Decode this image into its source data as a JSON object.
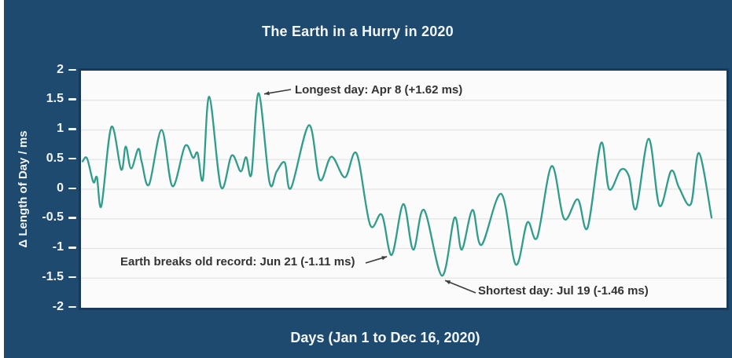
{
  "title": "The Earth in a Hurry in 2020",
  "colors": {
    "panel_background": "#1f4a6f",
    "plot_background": "#fbfbfb",
    "plot_border": "#17395c",
    "gridline": "#e4e4e4",
    "line": "#2f9d8a",
    "annotation_text": "#333333",
    "annotation_arrow": "#3b3b3b",
    "axis_text": "#f3f6f9"
  },
  "chart_data": {
    "type": "line",
    "title": "The Earth in a Hurry in 2020",
    "xlabel": "Days (Jan 1 to Dec 16, 2020)",
    "ylabel": "Δ Length of Day / ms",
    "x_range_days": [
      0,
      350
    ],
    "ylim": [
      -2,
      2
    ],
    "grid": true,
    "legend": "none",
    "yticks": [
      {
        "label": "2",
        "value": 2
      },
      {
        "label": "1.5",
        "value": 1.5
      },
      {
        "label": "1",
        "value": 1
      },
      {
        "label": "0.5",
        "value": 0.5
      },
      {
        "label": "0",
        "value": 0
      },
      {
        "label": "-0.5",
        "value": -0.5
      },
      {
        "label": "-1",
        "value": -1
      },
      {
        "label": "-1.5",
        "value": -1.5
      },
      {
        "label": "-2",
        "value": -2
      }
    ],
    "series": [
      {
        "name": "delta-length-of-day-ms",
        "points": [
          [
            0,
            0.47
          ],
          [
            2.5,
            0.52
          ],
          [
            6,
            0.12
          ],
          [
            8,
            0.2
          ],
          [
            10.5,
            -0.28
          ],
          [
            16,
            1.05
          ],
          [
            21.5,
            0.33
          ],
          [
            24,
            0.72
          ],
          [
            27,
            0.35
          ],
          [
            31,
            0.68
          ],
          [
            33,
            0.45
          ],
          [
            37,
            0.08
          ],
          [
            44,
            1.0
          ],
          [
            50,
            0.05
          ],
          [
            57,
            0.73
          ],
          [
            61.5,
            0.53
          ],
          [
            64,
            0.61
          ],
          [
            67,
            0.17
          ],
          [
            70.5,
            1.56
          ],
          [
            77,
            0.04
          ],
          [
            83,
            0.57
          ],
          [
            88,
            0.3
          ],
          [
            91,
            0.54
          ],
          [
            94,
            0.26
          ],
          [
            98,
            1.62
          ],
          [
            104,
            0.12
          ],
          [
            108,
            0.3
          ],
          [
            112.5,
            0.45
          ],
          [
            116,
            0.02
          ],
          [
            126,
            1.08
          ],
          [
            132,
            0.16
          ],
          [
            138.5,
            0.55
          ],
          [
            146,
            0.2
          ],
          [
            152.5,
            0.6
          ],
          [
            160,
            -0.6
          ],
          [
            166.5,
            -0.43
          ],
          [
            172,
            -1.11
          ],
          [
            178.5,
            -0.25
          ],
          [
            184,
            -1.02
          ],
          [
            190,
            -0.35
          ],
          [
            200,
            -1.46
          ],
          [
            207,
            -0.48
          ],
          [
            211,
            -1.02
          ],
          [
            217,
            -0.35
          ],
          [
            222,
            -0.94
          ],
          [
            233,
            -0.08
          ],
          [
            241,
            -1.27
          ],
          [
            247.5,
            -0.56
          ],
          [
            253,
            -0.81
          ],
          [
            261,
            0.39
          ],
          [
            268,
            -0.5
          ],
          [
            275.5,
            -0.17
          ],
          [
            281,
            -0.65
          ],
          [
            288.5,
            0.78
          ],
          [
            293,
            0.0
          ],
          [
            299.5,
            0.33
          ],
          [
            304,
            0.22
          ],
          [
            308,
            -0.33
          ],
          [
            315,
            0.85
          ],
          [
            321,
            -0.28
          ],
          [
            327.5,
            0.31
          ],
          [
            332,
            0.02
          ],
          [
            338.5,
            -0.25
          ],
          [
            343,
            0.61
          ],
          [
            350,
            -0.48
          ]
        ]
      }
    ],
    "annotations": [
      {
        "id": "longest-day",
        "text": "Longest day: Apr 8 (+1.62 ms)",
        "day": 98,
        "value": 1.62
      },
      {
        "id": "record-jun21",
        "text": "Earth breaks old record: Jun 21 (-1.11 ms)",
        "day": 172,
        "value": -1.11
      },
      {
        "id": "shortest-day",
        "text": "Shortest day: Jul 19 (-1.46 ms)",
        "day": 200,
        "value": -1.46
      }
    ]
  }
}
